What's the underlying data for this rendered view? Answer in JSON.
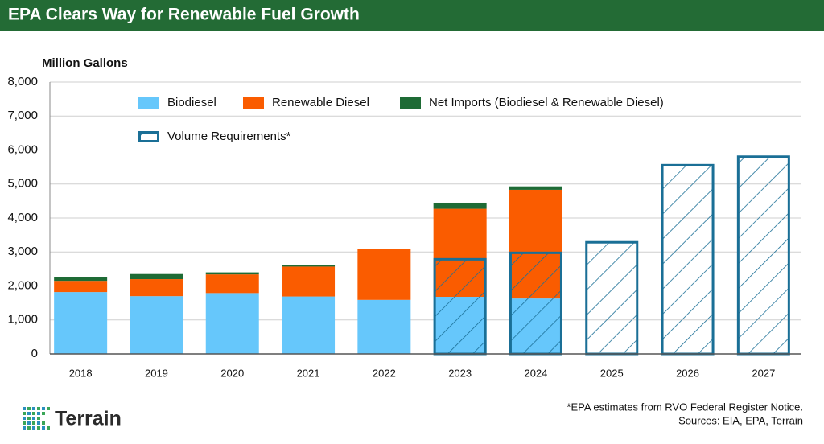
{
  "chart_data": {
    "type": "bar",
    "title": "EPA Clears Way for Renewable Fuel Growth",
    "ylabel": "Million Gallons",
    "categories": [
      "2018",
      "2019",
      "2020",
      "2021",
      "2022",
      "2023",
      "2024",
      "2025",
      "2026",
      "2027"
    ],
    "series": [
      {
        "name": "Biodiesel",
        "color": "#66c7fb",
        "stacked": true,
        "values": [
          1820,
          1700,
          1790,
          1690,
          1590,
          1680,
          1630,
          null,
          null,
          null
        ]
      },
      {
        "name": "Renewable Diesel",
        "color": "#fa5c00",
        "stacked": true,
        "values": [
          330,
          500,
          550,
          880,
          1510,
          2590,
          3200,
          null,
          null,
          null
        ]
      },
      {
        "name": "Net Imports (Biodiesel & Renewable Diesel)",
        "color": "#1e6b35",
        "stacked": true,
        "values": [
          120,
          150,
          60,
          50,
          0,
          180,
          100,
          null,
          null,
          null
        ]
      },
      {
        "name": "Volume Requirements*",
        "color": "#1a6f96",
        "hatched": true,
        "values": [
          null,
          null,
          null,
          null,
          null,
          2820,
          3010,
          3320,
          5590,
          5840
        ]
      }
    ],
    "ylim": [
      0,
      8000
    ],
    "yticks": [
      0,
      {
        "value": 1000,
        "label": "1,000"
      },
      {
        "value": 2000,
        "label": "2,000"
      },
      {
        "value": 3000,
        "label": "3,000"
      },
      {
        "value": 4000,
        "label": "4,000"
      },
      {
        "value": 5000,
        "label": "5,000"
      },
      {
        "value": 6000,
        "label": "6,000"
      },
      {
        "value": 7000,
        "label": "7,000"
      },
      {
        "value": 8000,
        "label": "8,000"
      }
    ],
    "grid": true,
    "footnote": "*EPA estimates from RVO Federal Register Notice.",
    "source": "Sources: EIA, EPA, Terrain",
    "logo": "Terrain"
  }
}
